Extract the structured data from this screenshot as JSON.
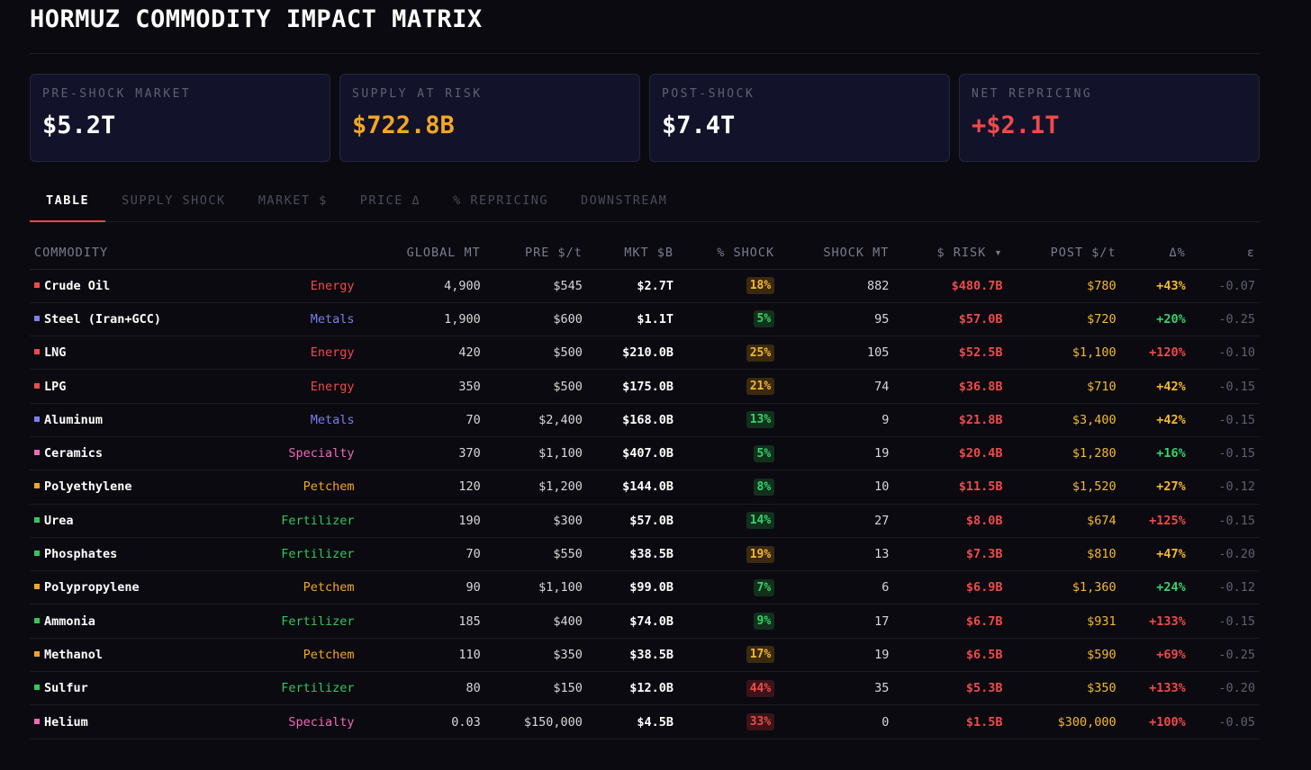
{
  "title": "HORMUZ COMMODITY IMPACT MATRIX",
  "cards": [
    {
      "label": "PRE-SHOCK MARKET",
      "value": "$5.2T",
      "color": "#ffffff"
    },
    {
      "label": "SUPPLY AT RISK",
      "value": "$722.8B",
      "color": "#f5a623"
    },
    {
      "label": "POST-SHOCK",
      "value": "$7.4T",
      "color": "#ffffff"
    },
    {
      "label": "NET REPRICING",
      "value": "+$2.1T",
      "color": "#f04a4a"
    }
  ],
  "tabs": [
    "TABLE",
    "SUPPLY SHOCK",
    "MARKET $",
    "PRICE Δ",
    "% REPRICING",
    "DOWNSTREAM"
  ],
  "active_tab": "TABLE",
  "columns": [
    "COMMODITY",
    "",
    "GLOBAL MT",
    "PRE $/t",
    "MKT $B",
    "% SHOCK",
    "SHOCK MT",
    "$ RISK ▾",
    "POST $/t",
    "Δ%",
    "ε"
  ],
  "sector_colors": {
    "Energy": "#f04a4a",
    "Metals": "#7b7ff0",
    "Specialty": "#f06ab8",
    "Petchem": "#f5a623",
    "Fertilizer": "#34c759"
  },
  "shock_styles": {
    "yellow": {
      "fg": "#f5b82e",
      "bg": "#3a2a10"
    },
    "green": {
      "fg": "#34d46a",
      "bg": "#12301c"
    },
    "red": {
      "fg": "#f04a4a",
      "bg": "#3a1418"
    }
  },
  "delta_colors": {
    "yellow": "#f5b82e",
    "green": "#34d46a",
    "red": "#f04a4a"
  },
  "rows": [
    {
      "name": "Crude Oil",
      "sector": "Energy",
      "global": "4,900",
      "pre": "$545",
      "mkt": "$2.7T",
      "shock": "18%",
      "shock_style": "yellow",
      "shock_mt": "882",
      "risk": "$480.7B",
      "post": "$780",
      "delta": "+43%",
      "delta_style": "yellow",
      "eps": "-0.07"
    },
    {
      "name": "Steel (Iran+GCC)",
      "sector": "Metals",
      "global": "1,900",
      "pre": "$600",
      "mkt": "$1.1T",
      "shock": "5%",
      "shock_style": "green",
      "shock_mt": "95",
      "risk": "$57.0B",
      "post": "$720",
      "delta": "+20%",
      "delta_style": "green",
      "eps": "-0.25"
    },
    {
      "name": "LNG",
      "sector": "Energy",
      "global": "420",
      "pre": "$500",
      "mkt": "$210.0B",
      "shock": "25%",
      "shock_style": "yellow",
      "shock_mt": "105",
      "risk": "$52.5B",
      "post": "$1,100",
      "delta": "+120%",
      "delta_style": "red",
      "eps": "-0.10"
    },
    {
      "name": "LPG",
      "sector": "Energy",
      "global": "350",
      "pre": "$500",
      "mkt": "$175.0B",
      "shock": "21%",
      "shock_style": "yellow",
      "shock_mt": "74",
      "risk": "$36.8B",
      "post": "$710",
      "delta": "+42%",
      "delta_style": "yellow",
      "eps": "-0.15"
    },
    {
      "name": "Aluminum",
      "sector": "Metals",
      "global": "70",
      "pre": "$2,400",
      "mkt": "$168.0B",
      "shock": "13%",
      "shock_style": "green",
      "shock_mt": "9",
      "risk": "$21.8B",
      "post": "$3,400",
      "delta": "+42%",
      "delta_style": "yellow",
      "eps": "-0.15"
    },
    {
      "name": "Ceramics",
      "sector": "Specialty",
      "global": "370",
      "pre": "$1,100",
      "mkt": "$407.0B",
      "shock": "5%",
      "shock_style": "green",
      "shock_mt": "19",
      "risk": "$20.4B",
      "post": "$1,280",
      "delta": "+16%",
      "delta_style": "green",
      "eps": "-0.15"
    },
    {
      "name": "Polyethylene",
      "sector": "Petchem",
      "global": "120",
      "pre": "$1,200",
      "mkt": "$144.0B",
      "shock": "8%",
      "shock_style": "green",
      "shock_mt": "10",
      "risk": "$11.5B",
      "post": "$1,520",
      "delta": "+27%",
      "delta_style": "yellow",
      "eps": "-0.12"
    },
    {
      "name": "Urea",
      "sector": "Fertilizer",
      "global": "190",
      "pre": "$300",
      "mkt": "$57.0B",
      "shock": "14%",
      "shock_style": "green",
      "shock_mt": "27",
      "risk": "$8.0B",
      "post": "$674",
      "delta": "+125%",
      "delta_style": "red",
      "eps": "-0.15"
    },
    {
      "name": "Phosphates",
      "sector": "Fertilizer",
      "global": "70",
      "pre": "$550",
      "mkt": "$38.5B",
      "shock": "19%",
      "shock_style": "yellow",
      "shock_mt": "13",
      "risk": "$7.3B",
      "post": "$810",
      "delta": "+47%",
      "delta_style": "yellow",
      "eps": "-0.20"
    },
    {
      "name": "Polypropylene",
      "sector": "Petchem",
      "global": "90",
      "pre": "$1,100",
      "mkt": "$99.0B",
      "shock": "7%",
      "shock_style": "green",
      "shock_mt": "6",
      "risk": "$6.9B",
      "post": "$1,360",
      "delta": "+24%",
      "delta_style": "green",
      "eps": "-0.12"
    },
    {
      "name": "Ammonia",
      "sector": "Fertilizer",
      "global": "185",
      "pre": "$400",
      "mkt": "$74.0B",
      "shock": "9%",
      "shock_style": "green",
      "shock_mt": "17",
      "risk": "$6.7B",
      "post": "$931",
      "delta": "+133%",
      "delta_style": "red",
      "eps": "-0.15"
    },
    {
      "name": "Methanol",
      "sector": "Petchem",
      "global": "110",
      "pre": "$350",
      "mkt": "$38.5B",
      "shock": "17%",
      "shock_style": "yellow",
      "shock_mt": "19",
      "risk": "$6.5B",
      "post": "$590",
      "delta": "+69%",
      "delta_style": "red",
      "eps": "-0.25"
    },
    {
      "name": "Sulfur",
      "sector": "Fertilizer",
      "global": "80",
      "pre": "$150",
      "mkt": "$12.0B",
      "shock": "44%",
      "shock_style": "red",
      "shock_mt": "35",
      "risk": "$5.3B",
      "post": "$350",
      "delta": "+133%",
      "delta_style": "red",
      "eps": "-0.20"
    },
    {
      "name": "Helium",
      "sector": "Specialty",
      "global": "0.03",
      "pre": "$150,000",
      "mkt": "$4.5B",
      "shock": "33%",
      "shock_style": "red",
      "shock_mt": "0",
      "risk": "$1.5B",
      "post": "$300,000",
      "delta": "+100%",
      "delta_style": "red",
      "eps": "-0.05"
    }
  ]
}
